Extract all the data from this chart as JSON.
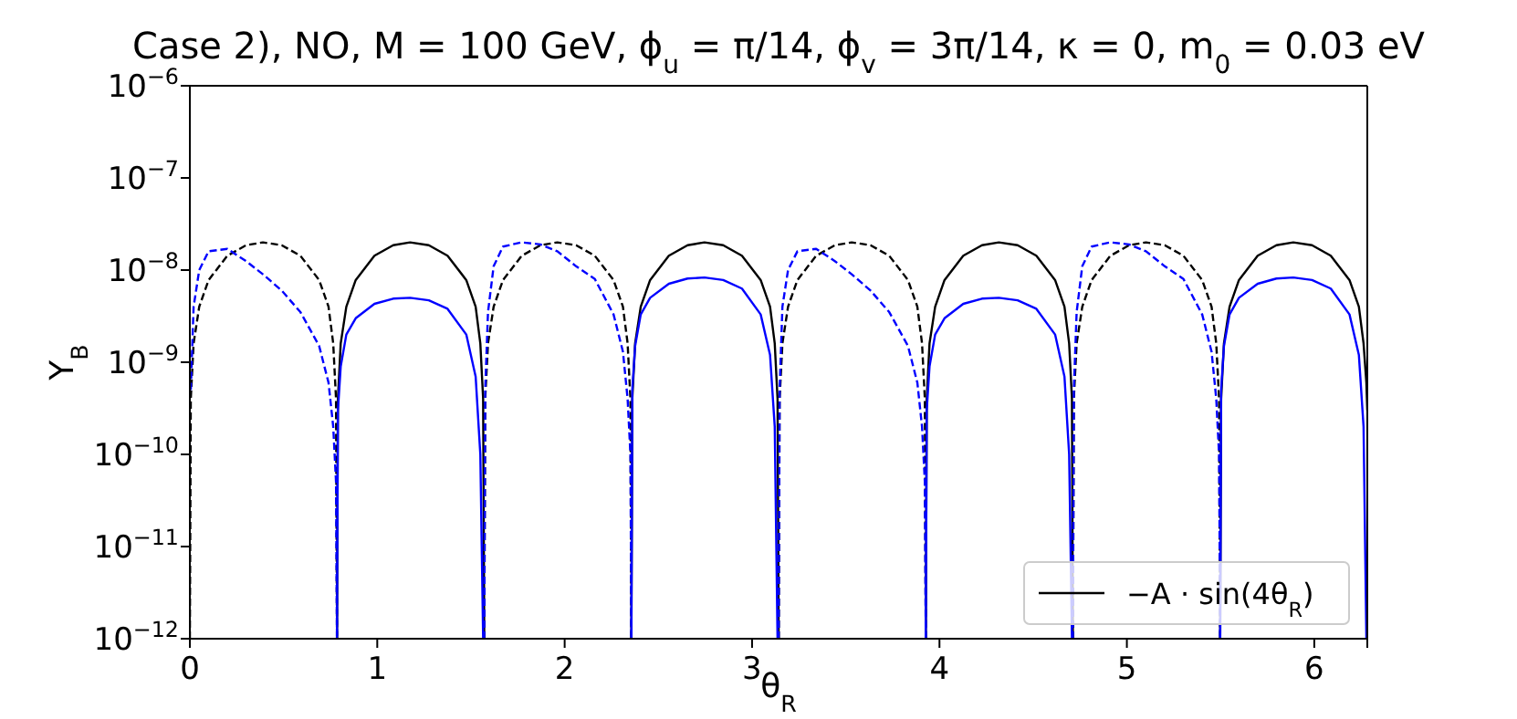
{
  "chart_data": {
    "type": "line",
    "title": "Case 2), NO, M = 100 GeV, ϕ$_{u}$ = π/14, ϕ$_{v}$ = 3π/14, κ = 0, m$_{0}$ = 0.03 eV",
    "xlabel": "θ$_{R}$",
    "ylabel": "Y$_{B}$",
    "xlim": [
      0,
      6.283
    ],
    "ylim": [
      1e-12,
      1e-06
    ],
    "log": "y",
    "legend": "bottom right",
    "xticks": [
      0,
      1,
      2,
      3,
      4,
      5,
      6
    ],
    "yticks": [
      {
        "value": 1e-12,
        "label": "10$^{−12}$"
      },
      {
        "value": 1e-11,
        "label": "10$^{−11}$"
      },
      {
        "value": 1e-10,
        "label": "10$^{−10}$"
      },
      {
        "value": 1e-09,
        "label": "10$^{−9}$"
      },
      {
        "value": 1e-08,
        "label": "10$^{−8}$"
      },
      {
        "value": 1e-07,
        "label": "10$^{−7}$"
      },
      {
        "value": 1e-06,
        "label": "10$^{−6}$"
      }
    ],
    "series": [
      {
        "name": "−A · sin(4θ$_{R}$)",
        "color": "#000000",
        "line_style": "solid",
        "x": [
          0.785,
          0.79,
          0.805,
          0.835,
          0.885,
          0.985,
          1.085,
          1.175,
          1.275,
          1.375,
          1.475,
          1.525,
          1.55,
          1.565,
          1.571,
          1.96,
          2.356,
          2.361,
          2.376,
          2.406,
          2.456,
          2.556,
          2.656,
          2.746,
          2.846,
          2.946,
          3.046,
          3.096,
          3.121,
          3.136,
          3.142,
          3.53,
          3.927,
          3.932,
          3.947,
          3.977,
          4.027,
          4.127,
          4.227,
          4.317,
          4.417,
          4.517,
          4.617,
          4.667,
          4.692,
          4.707,
          4.712,
          5.1,
          5.498,
          5.503,
          5.518,
          5.548,
          5.598,
          5.698,
          5.798,
          5.888,
          5.988,
          6.088,
          6.188,
          6.238,
          6.263,
          6.278,
          6.283
        ],
        "values": [
          1e-12,
          4e-10,
          1.6e-09,
          4e-09,
          7.8e-09,
          1.43e-08,
          1.86e-08,
          2e-08,
          1.86e-08,
          1.43e-08,
          7.8e-09,
          4e-09,
          1.6e-09,
          4e-10,
          1e-12,
          null,
          1e-12,
          4e-10,
          1.6e-09,
          4e-09,
          7.8e-09,
          1.43e-08,
          1.86e-08,
          2e-08,
          1.86e-08,
          1.43e-08,
          7.8e-09,
          4e-09,
          1.6e-09,
          4e-10,
          1e-12,
          null,
          1e-12,
          4e-10,
          1.6e-09,
          4e-09,
          7.8e-09,
          1.43e-08,
          1.86e-08,
          2e-08,
          1.86e-08,
          1.43e-08,
          7.8e-09,
          4e-09,
          1.6e-09,
          4e-10,
          1e-12,
          null,
          1e-12,
          4e-10,
          1.6e-09,
          4e-09,
          7.8e-09,
          1.43e-08,
          1.86e-08,
          2e-08,
          1.86e-08,
          1.43e-08,
          7.8e-09,
          4e-09,
          1.6e-09,
          6e-10,
          3e-10
        ]
      },
      {
        "color": "#000000",
        "line_style": "dashed",
        "x": [
          0,
          0.005,
          0.02,
          0.05,
          0.1,
          0.2,
          0.3,
          0.39,
          0.49,
          0.59,
          0.69,
          0.74,
          0.765,
          0.78,
          0.785,
          1.175,
          1.571,
          1.576,
          1.591,
          1.621,
          1.671,
          1.771,
          1.871,
          1.961,
          2.061,
          2.161,
          2.261,
          2.311,
          2.336,
          2.351,
          2.356,
          2.746,
          3.142,
          3.147,
          3.162,
          3.192,
          3.242,
          3.342,
          3.442,
          3.532,
          3.632,
          3.732,
          3.832,
          3.882,
          3.907,
          3.922,
          3.927,
          4.317,
          4.712,
          4.717,
          4.732,
          4.762,
          4.812,
          4.912,
          5.012,
          5.102,
          5.202,
          5.302,
          5.402,
          5.452,
          5.477,
          5.492,
          5.498
        ],
        "values": [
          1e-12,
          4e-10,
          1.6e-09,
          4e-09,
          7.8e-09,
          1.43e-08,
          1.86e-08,
          2e-08,
          1.86e-08,
          1.43e-08,
          7.8e-09,
          4e-09,
          1.6e-09,
          4e-10,
          1e-12,
          null,
          1e-12,
          4e-10,
          1.6e-09,
          4e-09,
          7.8e-09,
          1.43e-08,
          1.86e-08,
          2e-08,
          1.86e-08,
          1.43e-08,
          7.8e-09,
          4e-09,
          1.6e-09,
          4e-10,
          1e-12,
          null,
          1e-12,
          4e-10,
          1.6e-09,
          4e-09,
          7.8e-09,
          1.43e-08,
          1.86e-08,
          2e-08,
          1.86e-08,
          1.43e-08,
          7.8e-09,
          4e-09,
          1.6e-09,
          4e-10,
          1e-12,
          null,
          1e-12,
          4e-10,
          1.6e-09,
          4e-09,
          7.8e-09,
          1.43e-08,
          1.86e-08,
          2e-08,
          1.86e-08,
          1.43e-08,
          7.8e-09,
          4e-09,
          1.6e-09,
          4e-10,
          1e-12
        ]
      },
      {
        "color": "#0000ff",
        "line_style": "solid",
        "x": [
          0.785,
          0.79,
          0.805,
          0.835,
          0.885,
          0.985,
          1.085,
          1.175,
          1.275,
          1.375,
          1.475,
          1.525,
          1.55,
          1.565,
          1.571,
          1.96,
          2.356,
          2.361,
          2.376,
          2.406,
          2.456,
          2.556,
          2.656,
          2.746,
          2.846,
          2.946,
          3.046,
          3.096,
          3.121,
          3.136,
          3.142,
          3.53,
          3.927,
          3.932,
          3.947,
          3.977,
          4.027,
          4.127,
          4.227,
          4.317,
          4.417,
          4.517,
          4.617,
          4.667,
          4.692,
          4.707,
          4.712,
          5.1,
          5.498,
          5.503,
          5.518,
          5.548,
          5.598,
          5.698,
          5.798,
          5.888,
          5.988,
          6.088,
          6.188,
          6.238,
          6.263,
          6.278,
          6.283
        ],
        "values": [
          1e-12,
          3e-10,
          9e-10,
          2e-09,
          3e-09,
          4.3e-09,
          4.9e-09,
          5e-09,
          4.7e-09,
          3.8e-09,
          2e-09,
          7e-10,
          1e-10,
          1e-12,
          1e-12,
          null,
          1e-12,
          5e-10,
          1.5e-09,
          3.3e-09,
          5e-09,
          7.1e-09,
          8.1e-09,
          8.3e-09,
          7.8e-09,
          6.3e-09,
          3.3e-09,
          1.2e-09,
          2e-10,
          1e-12,
          1e-12,
          null,
          1e-12,
          3e-10,
          9e-10,
          2e-09,
          3e-09,
          4.3e-09,
          4.9e-09,
          5e-09,
          4.7e-09,
          3.8e-09,
          2e-09,
          7e-10,
          1e-10,
          1e-12,
          1e-12,
          null,
          1e-12,
          5e-10,
          1.5e-09,
          3.3e-09,
          5e-09,
          7.1e-09,
          8.1e-09,
          8.3e-09,
          7.8e-09,
          6.3e-09,
          3.3e-09,
          1.2e-09,
          2e-10,
          1e-12,
          1e-12
        ]
      },
      {
        "color": "#0000ff",
        "line_style": "dashed",
        "x": [
          0.005,
          0.02,
          0.05,
          0.1,
          0.2,
          0.3,
          0.39,
          0.49,
          0.59,
          0.69,
          0.74,
          0.765,
          0.78,
          0.785,
          1.175,
          1.571,
          1.576,
          1.591,
          1.621,
          1.671,
          1.771,
          1.871,
          1.961,
          2.061,
          2.161,
          2.261,
          2.311,
          2.336,
          2.351,
          2.356,
          2.746,
          3.142,
          3.147,
          3.162,
          3.192,
          3.242,
          3.342,
          3.442,
          3.532,
          3.632,
          3.732,
          3.832,
          3.882,
          3.907,
          3.922,
          3.927,
          4.317,
          4.712,
          4.717,
          4.732,
          4.762,
          4.812,
          4.912,
          5.012,
          5.102,
          5.202,
          5.302,
          5.402,
          5.452,
          5.477,
          5.492,
          5.498
        ],
        "values": [
          5e-10,
          4e-09,
          1e-08,
          1.6e-08,
          1.7e-08,
          1.25e-08,
          9e-09,
          6e-09,
          3.5e-09,
          1.5e-09,
          6e-10,
          2e-10,
          5e-11,
          1e-12,
          null,
          1e-12,
          5e-10,
          3.5e-09,
          1.1e-08,
          1.8e-08,
          2e-08,
          1.9e-08,
          1.6e-08,
          1.1e-08,
          8e-09,
          3.3e-09,
          1.3e-09,
          4e-10,
          1e-10,
          1e-12,
          null,
          1e-12,
          5e-10,
          4e-09,
          1e-08,
          1.6e-08,
          1.7e-08,
          1.25e-08,
          9e-09,
          6e-09,
          3.5e-09,
          1.5e-09,
          6e-10,
          2e-10,
          5e-11,
          1e-12,
          null,
          1e-12,
          5e-10,
          3.5e-09,
          1.1e-08,
          1.8e-08,
          2e-08,
          1.9e-08,
          1.6e-08,
          1.1e-08,
          8e-09,
          3.3e-09,
          1.3e-09,
          4e-10,
          1e-10,
          1e-12
        ]
      }
    ]
  }
}
